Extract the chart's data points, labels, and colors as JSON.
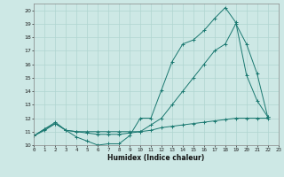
{
  "xlabel": "Humidex (Indice chaleur)",
  "bg_color": "#cde8e5",
  "line_color": "#1a7870",
  "grid_color": "#b0d5d0",
  "xlim": [
    0,
    23
  ],
  "ylim": [
    10,
    20.5
  ],
  "xticks": [
    0,
    1,
    2,
    3,
    4,
    5,
    6,
    7,
    8,
    9,
    10,
    11,
    12,
    13,
    14,
    15,
    16,
    17,
    18,
    19,
    20,
    21,
    22,
    23
  ],
  "yticks": [
    10,
    11,
    12,
    13,
    14,
    15,
    16,
    17,
    18,
    19,
    20
  ],
  "series1_x": [
    0,
    1,
    2,
    3,
    4,
    5,
    6,
    7,
    8,
    9,
    10,
    11,
    12,
    13,
    14,
    15,
    16,
    17,
    18,
    19,
    20,
    21,
    22
  ],
  "series1_y": [
    10.7,
    11.2,
    11.6,
    11.1,
    10.6,
    10.3,
    10.0,
    10.1,
    10.1,
    10.7,
    12.0,
    12.0,
    14.1,
    16.2,
    17.5,
    17.8,
    18.5,
    19.4,
    20.2,
    19.1,
    15.2,
    13.3,
    12.1
  ],
  "series2_x": [
    0,
    1,
    2,
    3,
    4,
    5,
    6,
    7,
    8,
    9,
    10,
    11,
    12,
    13,
    14,
    15,
    16,
    17,
    18,
    19,
    20,
    21,
    22
  ],
  "series2_y": [
    10.7,
    11.2,
    11.7,
    11.1,
    11.0,
    11.0,
    11.0,
    11.0,
    11.0,
    11.0,
    11.0,
    11.5,
    12.0,
    13.0,
    14.0,
    15.0,
    16.0,
    17.0,
    17.5,
    19.0,
    17.5,
    15.3,
    12.1
  ],
  "series3_x": [
    0,
    1,
    2,
    3,
    4,
    5,
    6,
    7,
    8,
    9,
    10,
    11,
    12,
    13,
    14,
    15,
    16,
    17,
    18,
    19,
    20,
    21,
    22
  ],
  "series3_y": [
    10.7,
    11.1,
    11.6,
    11.1,
    11.0,
    10.9,
    10.8,
    10.8,
    10.8,
    10.9,
    11.0,
    11.1,
    11.3,
    11.4,
    11.5,
    11.6,
    11.7,
    11.8,
    11.9,
    12.0,
    12.0,
    12.0,
    12.0
  ]
}
